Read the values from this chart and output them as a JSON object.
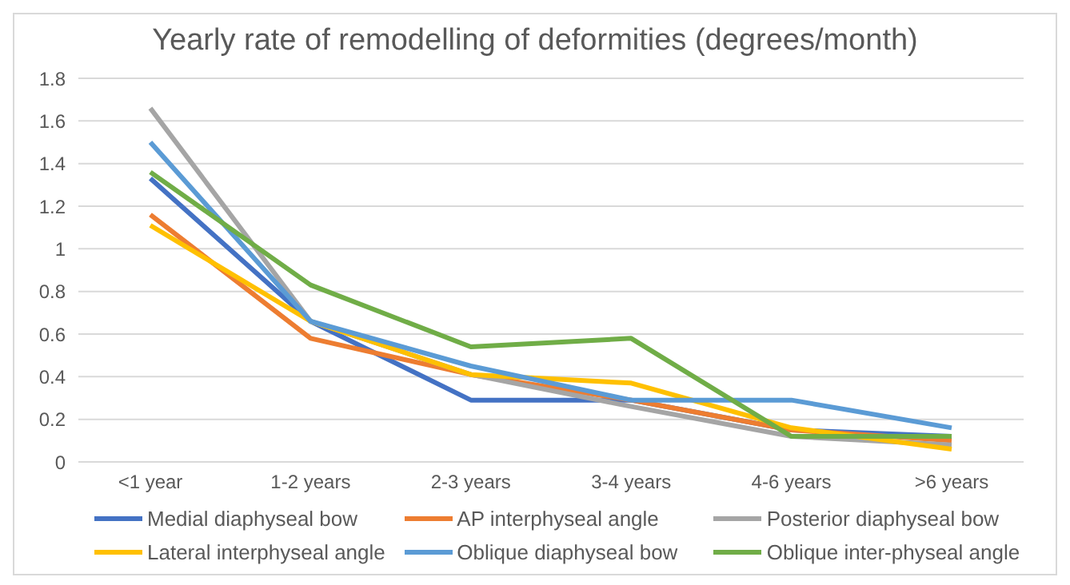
{
  "chart_data": {
    "type": "line",
    "title": "Yearly rate of remodelling of deformities (degrees/month)",
    "categories": [
      "<1 year",
      "1-2 years",
      "2-3 years",
      "3-4 years",
      "4-6 years",
      ">6 years"
    ],
    "series": [
      {
        "name": "Medial diaphyseal bow",
        "color": "#4472c4",
        "values": [
          1.33,
          0.66,
          0.29,
          0.29,
          0.15,
          0.12
        ]
      },
      {
        "name": "AP interphyseal angle",
        "color": "#ed7d31",
        "values": [
          1.16,
          0.58,
          0.41,
          0.29,
          0.15,
          0.1
        ]
      },
      {
        "name": "Posterior diaphyseal bow",
        "color": "#a5a5a5",
        "values": [
          1.66,
          0.66,
          0.41,
          0.26,
          0.12,
          0.08
        ]
      },
      {
        "name": "Lateral interphyseal angle",
        "color": "#ffc000",
        "values": [
          1.11,
          0.66,
          0.41,
          0.37,
          0.16,
          0.06
        ]
      },
      {
        "name": "Oblique diaphyseal bow",
        "color": "#5b9bd5",
        "values": [
          1.5,
          0.66,
          0.45,
          0.29,
          0.29,
          0.16
        ]
      },
      {
        "name": "Oblique inter-physeal angle",
        "color": "#70ad47",
        "values": [
          1.36,
          0.83,
          0.54,
          0.58,
          0.12,
          0.12
        ]
      }
    ],
    "ylim": [
      0,
      1.8
    ],
    "yticks": [
      0,
      0.2,
      0.4,
      0.6,
      0.8,
      1,
      1.2,
      1.4,
      1.6,
      1.8
    ],
    "grid": "y",
    "legend": "bottom",
    "marker": "none",
    "line_style": "solid"
  }
}
